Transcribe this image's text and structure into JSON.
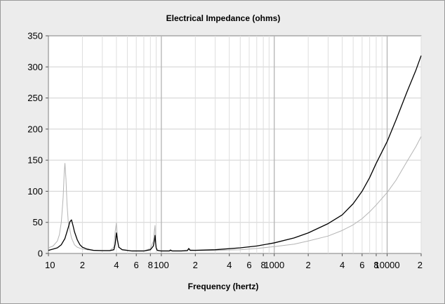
{
  "chart_data": {
    "type": "line",
    "title": "Electrical Impedance (ohms)",
    "xlabel": "Frequency (hertz)",
    "ylabel": "",
    "x_scale": "log",
    "xlim": [
      10,
      20000
    ],
    "ylim": [
      0,
      350
    ],
    "grid": true,
    "legend": "none",
    "y_ticks": [
      0,
      50,
      100,
      150,
      200,
      250,
      300,
      350
    ],
    "x_ticks": [
      {
        "value": 10,
        "label": "10"
      },
      {
        "value": 20,
        "label": "2"
      },
      {
        "value": 40,
        "label": "4"
      },
      {
        "value": 60,
        "label": "6"
      },
      {
        "value": 80,
        "label": "8"
      },
      {
        "value": 100,
        "label": "100"
      },
      {
        "value": 200,
        "label": "2"
      },
      {
        "value": 400,
        "label": "4"
      },
      {
        "value": 600,
        "label": "6"
      },
      {
        "value": 800,
        "label": "8"
      },
      {
        "value": 1000,
        "label": "1000"
      },
      {
        "value": 2000,
        "label": "2"
      },
      {
        "value": 4000,
        "label": "4"
      },
      {
        "value": 6000,
        "label": "6"
      },
      {
        "value": 8000,
        "label": "8"
      },
      {
        "value": 10000,
        "label": "10000"
      },
      {
        "value": 20000,
        "label": "2"
      }
    ],
    "series": [
      {
        "color": "#000000",
        "x": [
          10,
          11,
          12,
          13,
          14,
          15,
          15.5,
          16,
          16.5,
          17,
          18,
          19,
          20,
          22,
          25,
          30,
          35,
          38,
          39,
          40,
          41,
          42,
          45,
          55,
          70,
          80,
          85,
          87,
          88,
          89,
          90,
          92,
          100,
          110,
          118,
          120,
          125,
          150,
          170,
          175,
          180,
          200,
          300,
          500,
          700,
          1000,
          1500,
          2000,
          3000,
          4000,
          5000,
          6000,
          7000,
          8000,
          10000,
          12000,
          15000,
          18000,
          20000
        ],
        "y": [
          5,
          7,
          9,
          14,
          24,
          42,
          51,
          54,
          45,
          35,
          22,
          14,
          10,
          7,
          5,
          4.5,
          4.5,
          6,
          15,
          33,
          20,
          10,
          6,
          4,
          4,
          6,
          12,
          22,
          29,
          17,
          9,
          5,
          4,
          4,
          4,
          5.5,
          4,
          4,
          4.5,
          8,
          5,
          5,
          6,
          9,
          12,
          17,
          25,
          33,
          48,
          62,
          80,
          100,
          122,
          145,
          180,
          215,
          260,
          295,
          318
        ]
      },
      {
        "color": "#b4b4b4",
        "x": [
          10,
          11,
          12,
          12.5,
          13,
          13.5,
          13.8,
          14,
          14.3,
          14.6,
          15,
          16,
          17,
          18,
          20,
          22,
          25,
          30,
          35,
          38,
          39,
          40,
          41,
          42,
          45,
          55,
          70,
          80,
          85,
          87,
          88,
          89,
          90,
          92,
          100,
          120,
          150,
          175,
          200,
          300,
          500,
          700,
          1000,
          1500,
          2000,
          3000,
          4000,
          5000,
          6000,
          7000,
          8000,
          10000,
          12000,
          15000,
          18000,
          20000
        ],
        "y": [
          9,
          12,
          20,
          30,
          50,
          90,
          130,
          145,
          120,
          80,
          50,
          25,
          14,
          10,
          7,
          6,
          5,
          5,
          5,
          10,
          35,
          49,
          22,
          10,
          6,
          4,
          4,
          8,
          20,
          38,
          45,
          20,
          9,
          5,
          4,
          4,
          4,
          6,
          5,
          5,
          6,
          8,
          11,
          15,
          20,
          28,
          37,
          46,
          56,
          67,
          78,
          98,
          118,
          148,
          172,
          188
        ]
      }
    ]
  }
}
